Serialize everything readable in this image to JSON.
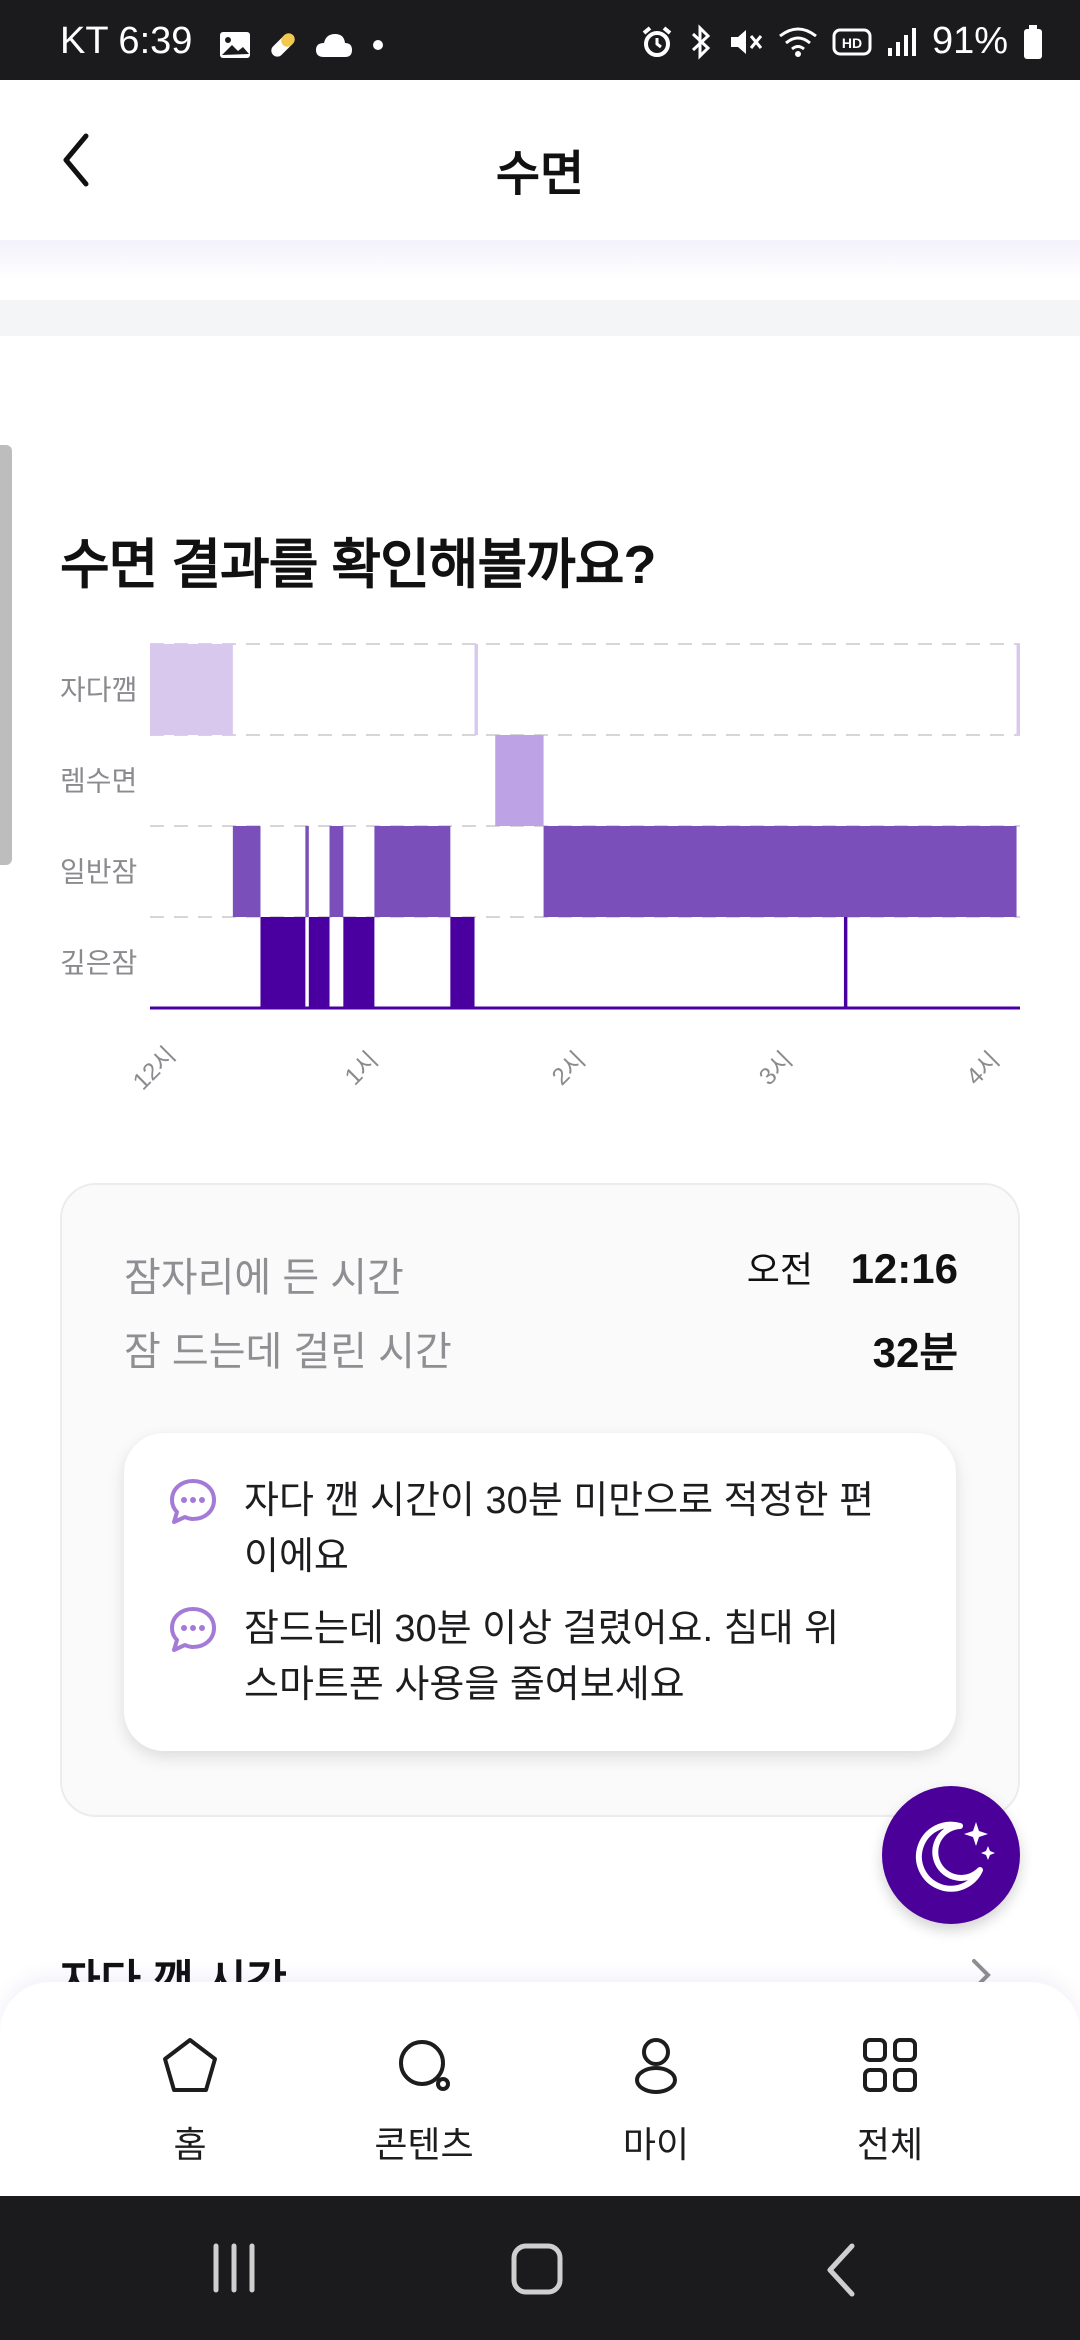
{
  "status_bar": {
    "carrier_time": "KT 6:39",
    "battery": "91%",
    "left_icons": [
      "image-icon",
      "pill-icon",
      "cloud-icon",
      "dot-icon"
    ],
    "right_icons": [
      "alarm-icon",
      "bluetooth-icon",
      "mute-icon",
      "wifi-icon",
      "hd-icon",
      "signal-icon",
      "battery-icon"
    ]
  },
  "header": {
    "title": "수면"
  },
  "section": {
    "title": "수면 결과를 확인해볼까요?"
  },
  "chart_data": {
    "type": "hypnogram",
    "stages": [
      "자다깸",
      "렘수면",
      "일반잠",
      "깊은잠"
    ],
    "x_ticks": [
      "12시",
      "1시",
      "2시",
      "3시",
      "4시"
    ],
    "xlim_minutes": [
      0,
      252
    ],
    "segments": [
      {
        "stage": "자다깸",
        "start": 0,
        "end": 24
      },
      {
        "stage": "일반잠",
        "start": 24,
        "end": 32
      },
      {
        "stage": "깊은잠",
        "start": 32,
        "end": 45
      },
      {
        "stage": "일반잠",
        "start": 45,
        "end": 46
      },
      {
        "stage": "깊은잠",
        "start": 46,
        "end": 52
      },
      {
        "stage": "일반잠",
        "start": 52,
        "end": 56
      },
      {
        "stage": "깊은잠",
        "start": 56,
        "end": 65
      },
      {
        "stage": "일반잠",
        "start": 65,
        "end": 87
      },
      {
        "stage": "깊은잠",
        "start": 87,
        "end": 94
      },
      {
        "stage": "자다깸",
        "start": 94,
        "end": 95
      },
      {
        "stage": "렘수면",
        "start": 100,
        "end": 114
      },
      {
        "stage": "일반잠",
        "start": 114,
        "end": 251
      },
      {
        "stage": "깊은잠",
        "start": 201,
        "end": 202
      },
      {
        "stage": "자다깸",
        "start": 251,
        "end": 252
      }
    ],
    "colors": {
      "자다깸": "#d9c8ee",
      "렘수면": "#bda2e6",
      "일반잠": "#7a4fba",
      "깊은잠": "#4a00a0"
    }
  },
  "summary": {
    "rows": [
      {
        "label": "잠자리에 든 시간",
        "prefix": "오전",
        "value": "12:16"
      },
      {
        "label": "잠 드는데 걸린 시간",
        "prefix": "",
        "value": "32분"
      }
    ],
    "tips": [
      "자다 깬 시간이 30분 미만으로 적정한 편이에요",
      "잠드는데 30분 이상 걸렸어요. 침대 위 스마트폰 사용을 줄여보세요"
    ]
  },
  "next_section": {
    "title": "자다 깬 시간"
  },
  "bottom_nav": {
    "items": [
      {
        "label": "홈",
        "icon": "home-icon"
      },
      {
        "label": "콘텐츠",
        "icon": "contents-icon"
      },
      {
        "label": "마이",
        "icon": "profile-icon"
      },
      {
        "label": "전체",
        "icon": "grid-icon"
      }
    ]
  },
  "fab": {
    "icon": "moon-sparkle-icon"
  }
}
